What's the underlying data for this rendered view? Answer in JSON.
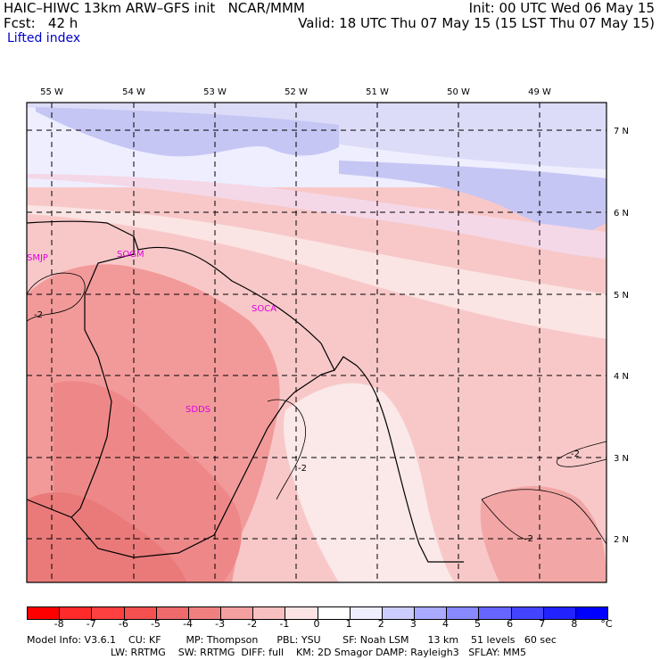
{
  "header": {
    "model_title": "HAIC–HIWC 13km ARW–GFS init   NCAR/MMM",
    "forecast": "Fcst:   42 h",
    "field_name": "Lifted index",
    "init": "Init: 00 UTC Wed 06 May 15",
    "valid": "Valid: 18 UTC Thu 07 May 15 (15 LST Thu 07 May 15)"
  },
  "map": {
    "longitude_labels": [
      "55 W",
      "54 W",
      "53 W",
      "52 W",
      "51 W",
      "50 W",
      "49 W"
    ],
    "latitude_labels": [
      "7 N",
      "6 N",
      "5 N",
      "4 N",
      "3 N",
      "2 N"
    ],
    "stations": [
      "SMJP",
      "SOGM",
      "SOCA",
      "SDDS"
    ],
    "contour_labels": [
      "-2",
      "-2",
      "-2",
      "-2"
    ]
  },
  "colorbar": {
    "ticks": [
      "-8",
      "-7",
      "-6",
      "-5",
      "-4",
      "-3",
      "-2",
      "-1",
      "0",
      "1",
      "2",
      "3",
      "4",
      "5",
      "6",
      "7",
      "8"
    ],
    "unit": "°C",
    "colors": [
      "#ff0000",
      "#ff2a2a",
      "#ff4040",
      "#f45050",
      "#ef6a6a",
      "#f08080",
      "#f4a0a0",
      "#f8c0c0",
      "#fce4e4",
      "#eeeeff",
      "#ccccff",
      "#aaaaff",
      "#8888ff",
      "#6666ff",
      "#4444ff",
      "#2222ff",
      "#0000ff"
    ]
  },
  "footer": {
    "line1": "Model Info: V3.6.1    CU: KF        MP: Thompson      PBL: YSU       SF: Noah LSM      13 km    51 levels   60 sec",
    "line2": "LW: RRTMG    SW: RRTMG  DIFF: full    KM: 2D Smagor DAMP: Rayleigh3   SFLAY: MM5"
  }
}
